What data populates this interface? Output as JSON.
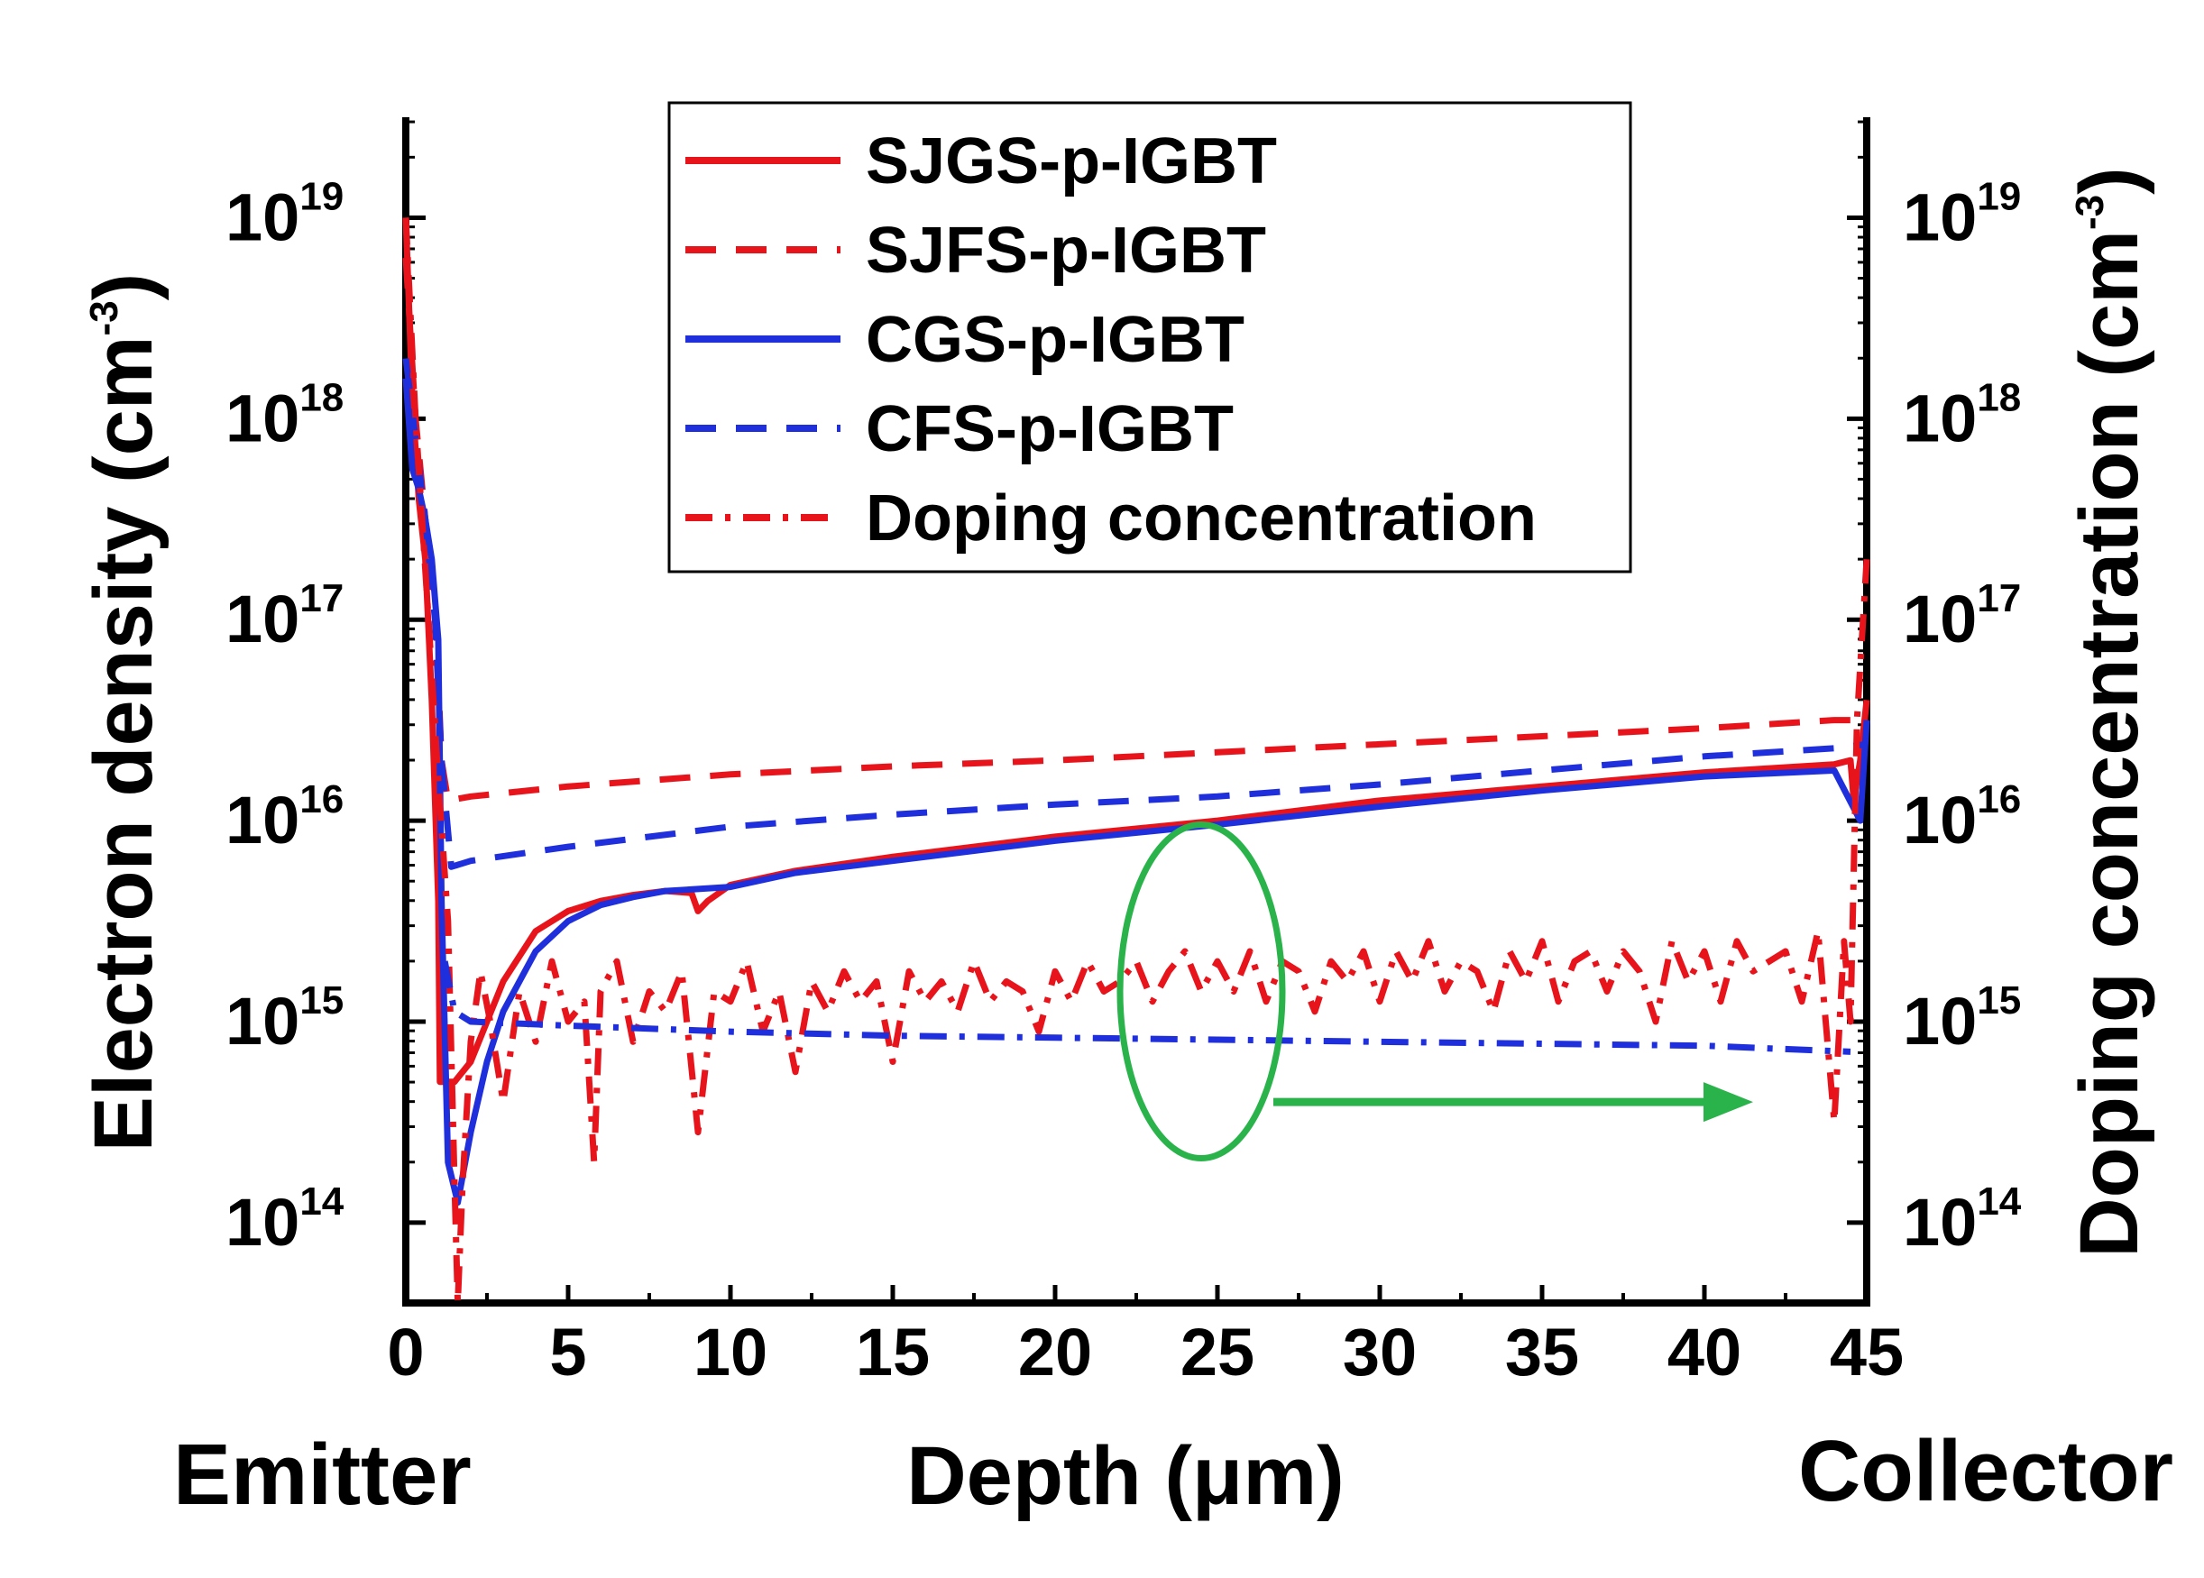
{
  "chart_data": {
    "type": "line",
    "xlabel": "Depth (μm)",
    "ylabel_left": "Electron density (cm",
    "ylabel_right": "Doping concentration (cm",
    "ylabel_unit_exponent": "-3",
    "x_endpoint_left": "Emitter",
    "x_endpoint_right": "Collector",
    "xlim": [
      0,
      45
    ],
    "ylim_log10": [
      13.6,
      19.5
    ],
    "x_ticks": [
      0,
      5,
      10,
      15,
      20,
      25,
      30,
      35,
      40,
      45
    ],
    "x_tick_labels": [
      "0",
      "5",
      "10",
      "15",
      "20",
      "25",
      "30",
      "35",
      "40",
      "45"
    ],
    "y_ticks": [
      {
        "base": "10",
        "exp": "14",
        "log10": 14
      },
      {
        "base": "10",
        "exp": "15",
        "log10": 15
      },
      {
        "base": "10",
        "exp": "16",
        "log10": 16
      },
      {
        "base": "10",
        "exp": "17",
        "log10": 17
      },
      {
        "base": "10",
        "exp": "18",
        "log10": 18
      },
      {
        "base": "10",
        "exp": "19",
        "log10": 19
      }
    ],
    "legend_position": "top-center",
    "series": [
      {
        "name": "SJGS-p-IGBT",
        "color": "#e8141c",
        "style": "solid",
        "x": [
          0,
          0.2,
          0.4,
          0.6,
          0.8,
          1.0,
          1.05,
          1.2,
          1.5,
          2.0,
          2.5,
          3.0,
          4.0,
          5.0,
          6.0,
          7.0,
          8.0,
          8.8,
          9.0,
          9.3,
          10,
          12,
          15,
          20,
          25,
          30,
          35,
          40,
          44,
          44.5,
          44.6,
          44.8,
          45
        ],
        "log10": [
          19.0,
          18.1,
          17.6,
          17.3,
          16.6,
          15.6,
          14.7,
          14.7,
          14.7,
          14.8,
          15.0,
          15.2,
          15.45,
          15.55,
          15.6,
          15.63,
          15.65,
          15.64,
          15.55,
          15.6,
          15.68,
          15.75,
          15.82,
          15.92,
          16.0,
          16.1,
          16.17,
          16.24,
          16.28,
          16.3,
          16.1,
          16.3,
          16.6
        ]
      },
      {
        "name": "SJFS-p-IGBT",
        "color": "#e8141c",
        "style": "dashed",
        "x": [
          0,
          0.3,
          0.6,
          0.9,
          1.1,
          1.3,
          2,
          5,
          10,
          15,
          20,
          25,
          30,
          35,
          40,
          44,
          45
        ],
        "log10": [
          18.8,
          18.0,
          17.5,
          17.1,
          16.3,
          16.1,
          16.12,
          16.17,
          16.23,
          16.27,
          16.3,
          16.34,
          16.38,
          16.42,
          16.46,
          16.5,
          16.5
        ]
      },
      {
        "name": "CGS-p-IGBT",
        "color": "#1f2fdc",
        "style": "solid",
        "x": [
          0,
          0.2,
          0.4,
          0.6,
          0.8,
          1.0,
          1.1,
          1.3,
          1.6,
          2.0,
          2.5,
          3.0,
          4.0,
          5.0,
          6.0,
          7.0,
          8.0,
          9.0,
          10,
          12,
          15,
          20,
          25,
          30,
          35,
          40,
          44,
          44.8,
          45
        ],
        "log10": [
          18.2,
          17.75,
          17.65,
          17.5,
          17.3,
          16.9,
          15.6,
          14.3,
          14.1,
          14.45,
          14.8,
          15.05,
          15.35,
          15.5,
          15.58,
          15.62,
          15.65,
          15.66,
          15.67,
          15.74,
          15.8,
          15.9,
          15.98,
          16.07,
          16.15,
          16.22,
          16.25,
          16.0,
          16.5
        ]
      },
      {
        "name": "CFS-p-IGBT",
        "color": "#1f2fdc",
        "style": "dashed",
        "x": [
          0,
          0.3,
          0.6,
          0.9,
          1.1,
          1.4,
          2,
          5,
          10,
          15,
          20,
          25,
          30,
          35,
          40,
          44,
          45
        ],
        "log10": [
          18.3,
          17.9,
          17.5,
          17.0,
          16.3,
          15.77,
          15.8,
          15.87,
          15.97,
          16.03,
          16.08,
          16.12,
          16.18,
          16.25,
          16.32,
          16.36,
          16.38
        ]
      },
      {
        "name": "Doping concentration",
        "color": "#e8141c",
        "style": "dashdot",
        "x": [
          0,
          0.3,
          0.7,
          1.0,
          1.3,
          1.5,
          1.6,
          1.75,
          2.0,
          2.3,
          2.6,
          3.0,
          3.5,
          4.0,
          4.5,
          5.0,
          5.5,
          5.8,
          6.0,
          6.5,
          7.0,
          7.5,
          8.0,
          8.5,
          9.0,
          9.5,
          10.0,
          10.5,
          11.0,
          11.5,
          12.0,
          12.5,
          13.0,
          13.5,
          14.0,
          14.5,
          15.0,
          15.5,
          16.0,
          16.5,
          17.0,
          17.5,
          18.0,
          18.5,
          19.0,
          19.5,
          20.0,
          20.5,
          21.0,
          21.5,
          22.0,
          22.5,
          23.0,
          23.5,
          24.0,
          24.5,
          25.0,
          25.5,
          26.0,
          26.5,
          27.0,
          27.5,
          28.0,
          28.5,
          29.0,
          29.5,
          30.0,
          30.5,
          31.0,
          31.5,
          32.0,
          32.5,
          33.0,
          33.5,
          34.0,
          34.5,
          35.0,
          35.5,
          36.0,
          36.5,
          37.0,
          37.5,
          38.0,
          38.5,
          39.0,
          39.5,
          40.0,
          40.5,
          41.0,
          41.5,
          42.0,
          42.5,
          43.0,
          43.5,
          44.0,
          44.3,
          44.5,
          44.7,
          45
        ],
        "log10": [
          19.0,
          18.0,
          17.0,
          16.2,
          15.5,
          14.2,
          13.6,
          14.2,
          14.9,
          15.25,
          15.0,
          14.6,
          15.15,
          14.9,
          15.3,
          15.0,
          15.1,
          14.3,
          15.15,
          15.3,
          14.9,
          15.15,
          15.05,
          15.25,
          14.45,
          15.15,
          15.1,
          15.3,
          14.95,
          15.15,
          14.75,
          15.2,
          15.05,
          15.25,
          15.1,
          15.2,
          14.8,
          15.25,
          15.1,
          15.2,
          15.05,
          15.3,
          15.1,
          15.2,
          15.15,
          14.95,
          15.25,
          15.1,
          15.3,
          15.15,
          15.2,
          15.3,
          15.1,
          15.25,
          15.35,
          15.15,
          15.3,
          15.15,
          15.35,
          15.1,
          15.3,
          15.25,
          15.05,
          15.3,
          15.2,
          15.35,
          15.1,
          15.35,
          15.2,
          15.4,
          15.15,
          15.3,
          15.25,
          15.05,
          15.35,
          15.2,
          15.4,
          15.1,
          15.3,
          15.35,
          15.15,
          15.35,
          15.25,
          15.0,
          15.4,
          15.2,
          15.35,
          15.1,
          15.4,
          15.25,
          15.3,
          15.35,
          15.1,
          15.45,
          14.5,
          15.4,
          15.0,
          16.5,
          17.3
        ]
      },
      {
        "name": "",
        "color": "#1f2fdc",
        "style": "dashdot",
        "x": [
          1.2,
          1.5,
          2,
          5,
          10,
          15,
          20,
          25,
          30,
          35,
          40,
          44.5
        ],
        "log10": [
          15.3,
          15.05,
          15.0,
          14.98,
          14.95,
          14.93,
          14.92,
          14.91,
          14.9,
          14.89,
          14.88,
          14.85
        ]
      }
    ],
    "annotation": {
      "type": "ellipse-with-arrow",
      "color": "#2ab34a",
      "center_x": 24.5,
      "center_log10": 15.15,
      "arrow_to_x": 41.5,
      "arrow_log10": 14.6,
      "meaning": "points to right axis"
    }
  }
}
